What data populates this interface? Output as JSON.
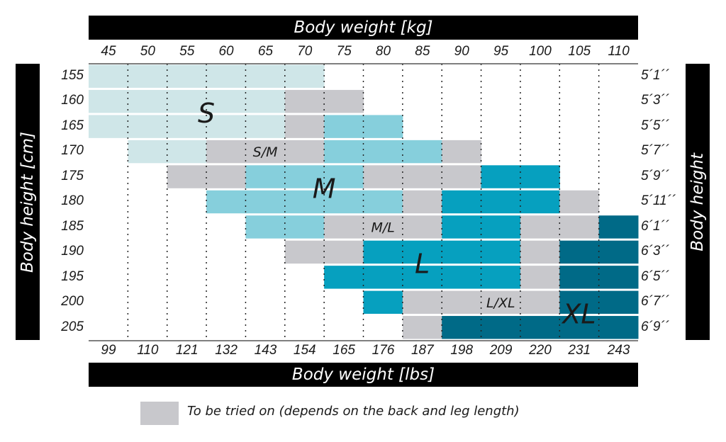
{
  "chart_data": {
    "type": "heatmap",
    "top_axis_title": "Body weight [kg]",
    "bottom_axis_title": "Body weight [lbs]",
    "left_axis_title": "Body height [cm]",
    "right_axis_title": "Body height",
    "weights_kg": [
      "45",
      "50",
      "55",
      "60",
      "65",
      "70",
      "75",
      "80",
      "85",
      "90",
      "95",
      "100",
      "105",
      "110"
    ],
    "weights_lbs": [
      "99",
      "110",
      "121",
      "132",
      "143",
      "154",
      "165",
      "176",
      "187",
      "198",
      "209",
      "220",
      "231",
      "243"
    ],
    "heights_cm": [
      "155",
      "160",
      "165",
      "170",
      "175",
      "180",
      "185",
      "190",
      "195",
      "200",
      "205"
    ],
    "heights_ft": [
      "5´1´´",
      "5´3´´",
      "5´5´´",
      "5´7´´",
      "5´9´´",
      "5´11´´",
      "6´1´´",
      "6´3´´",
      "6´5´´",
      "6´7´´",
      "6´9´´"
    ],
    "cell_legend": {
      ".": "none",
      "S": "S",
      "M": "M",
      "L": "L",
      "X": "XL",
      "g": "to be tried on"
    },
    "cells": [
      "SSSSSS........",
      "SSSSSgg.......",
      "SSSSSgMM......",
      ".SSgggMMMg....",
      "..ggMMMgggLL..",
      "...MMMMMgLLLg.",
      "....MMgggLLggX",
      ".....ggLLLLgXX",
      "......LLLLLgXX",
      ".......LggggXX",
      "........gXXXXX"
    ],
    "colors": {
      "S": "#cfe6e8",
      "M": "#86cfdc",
      "L": "#06a0bf",
      "X": "#006a87",
      "g": "#c8c8cc"
    },
    "region_labels": [
      {
        "text": "S",
        "weight_kg": 57.5,
        "height_cm": 162.5,
        "big": true
      },
      {
        "text": "S/M",
        "weight_kg": 65,
        "height_cm": 170,
        "big": false
      },
      {
        "text": "M",
        "weight_kg": 72.5,
        "height_cm": 177.5,
        "big": true
      },
      {
        "text": "M/L",
        "weight_kg": 80,
        "height_cm": 185,
        "big": false
      },
      {
        "text": "L",
        "weight_kg": 85,
        "height_cm": 192.5,
        "big": true
      },
      {
        "text": "L/XL",
        "weight_kg": 95,
        "height_cm": 200,
        "big": false
      },
      {
        "text": "XL",
        "weight_kg": 105,
        "height_cm": 202.5,
        "big": true
      }
    ],
    "grid": true
  },
  "legend": {
    "text": "To be tried on (depends on the back and leg length)",
    "color": "#c8c8cc"
  }
}
